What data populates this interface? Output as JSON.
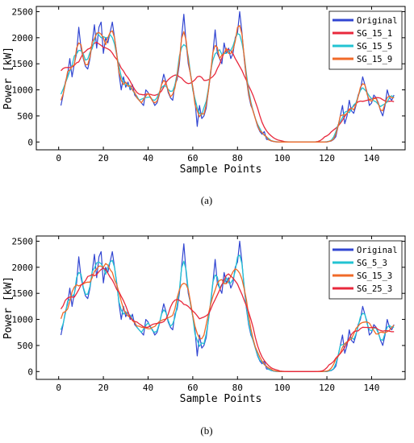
{
  "chart_data": [
    {
      "type": "line",
      "panel_label": "a",
      "title": "",
      "xlabel": "Sample Points",
      "ylabel": "Power [kW]",
      "xlim": [
        -10,
        155
      ],
      "ylim": [
        -150,
        2600
      ],
      "xticks": [
        0,
        20,
        40,
        60,
        80,
        100,
        120,
        140
      ],
      "yticks": [
        0,
        500,
        1000,
        1500,
        2000,
        2500
      ],
      "legend_position": "top-right",
      "series": [
        {
          "name": "Original",
          "color": "#3246d2",
          "width": 1.2,
          "smooth": 0
        },
        {
          "name": "SG_15_1",
          "color": "#e8283c",
          "width": 1.3,
          "smooth": 8
        },
        {
          "name": "SG_15_5",
          "color": "#22c3d2",
          "width": 1.3,
          "smooth": 2
        },
        {
          "name": "SG_15_9",
          "color": "#f06a28",
          "width": 1.3,
          "smooth": 1
        }
      ],
      "original": [
        700,
        900,
        1150,
        1300,
        1600,
        1250,
        1500,
        1700,
        2200,
        1800,
        1600,
        1450,
        1400,
        1600,
        1900,
        2250,
        1800,
        2200,
        2300,
        1700,
        2000,
        1900,
        2100,
        2300,
        2000,
        1700,
        1300,
        1000,
        1250,
        1050,
        1150,
        1000,
        1100,
        900,
        850,
        800,
        750,
        700,
        1000,
        950,
        850,
        800,
        700,
        750,
        900,
        1100,
        1300,
        1150,
        950,
        850,
        800,
        1100,
        1200,
        1500,
        2000,
        2450,
        1900,
        1500,
        1300,
        1050,
        800,
        300,
        700,
        450,
        500,
        650,
        1000,
        1300,
        1700,
        2150,
        1700,
        1600,
        1500,
        1900,
        1700,
        1800,
        1600,
        1700,
        2000,
        2100,
        2500,
        2100,
        1600,
        1200,
        900,
        700,
        600,
        450,
        300,
        200,
        150,
        200,
        50,
        50,
        20,
        10,
        5,
        0,
        0,
        0,
        0,
        0,
        0,
        0,
        0,
        0,
        0,
        0,
        0,
        0,
        0,
        0,
        0,
        0,
        0,
        0,
        0,
        0,
        0,
        0,
        10,
        20,
        50,
        100,
        300,
        500,
        700,
        350,
        500,
        800,
        600,
        550,
        700,
        900,
        1000,
        1250,
        1100,
        950,
        700,
        750,
        900,
        850,
        750,
        600,
        500,
        700,
        1000,
        850,
        800,
        900
      ]
    },
    {
      "type": "line",
      "panel_label": "b",
      "title": "",
      "xlabel": "Sample Points",
      "ylabel": "Power [kW]",
      "xlim": [
        -10,
        155
      ],
      "ylim": [
        -150,
        2600
      ],
      "xticks": [
        0,
        20,
        40,
        60,
        80,
        100,
        120,
        140
      ],
      "yticks": [
        0,
        500,
        1000,
        1500,
        2000,
        2500
      ],
      "legend_position": "top-right",
      "series": [
        {
          "name": "Original",
          "color": "#3246d2",
          "width": 1.2,
          "smooth": 0
        },
        {
          "name": "SG_5_3",
          "color": "#22c3d2",
          "width": 1.3,
          "smooth": 1
        },
        {
          "name": "SG_15_3",
          "color": "#f06a28",
          "width": 1.3,
          "smooth": 3
        },
        {
          "name": "SG_25_3",
          "color": "#e8283c",
          "width": 1.3,
          "smooth": 6
        }
      ],
      "original": [
        700,
        900,
        1150,
        1300,
        1600,
        1250,
        1500,
        1700,
        2200,
        1800,
        1600,
        1450,
        1400,
        1600,
        1900,
        2250,
        1800,
        2200,
        2300,
        1700,
        2000,
        1900,
        2100,
        2300,
        2000,
        1700,
        1300,
        1000,
        1250,
        1050,
        1150,
        1000,
        1100,
        900,
        850,
        800,
        750,
        700,
        1000,
        950,
        850,
        800,
        700,
        750,
        900,
        1100,
        1300,
        1150,
        950,
        850,
        800,
        1100,
        1200,
        1500,
        2000,
        2450,
        1900,
        1500,
        1300,
        1050,
        800,
        300,
        700,
        450,
        500,
        650,
        1000,
        1300,
        1700,
        2150,
        1700,
        1600,
        1500,
        1900,
        1700,
        1800,
        1600,
        1700,
        2000,
        2100,
        2500,
        2100,
        1600,
        1200,
        900,
        700,
        600,
        450,
        300,
        200,
        150,
        200,
        50,
        50,
        20,
        10,
        5,
        0,
        0,
        0,
        0,
        0,
        0,
        0,
        0,
        0,
        0,
        0,
        0,
        0,
        0,
        0,
        0,
        0,
        0,
        0,
        0,
        0,
        0,
        0,
        10,
        20,
        50,
        100,
        300,
        500,
        700,
        350,
        500,
        800,
        600,
        550,
        700,
        900,
        1000,
        1250,
        1100,
        950,
        700,
        750,
        900,
        850,
        750,
        600,
        500,
        700,
        1000,
        850,
        800,
        900
      ]
    }
  ],
  "captions": {
    "a": "(a)",
    "b": "(b)"
  }
}
